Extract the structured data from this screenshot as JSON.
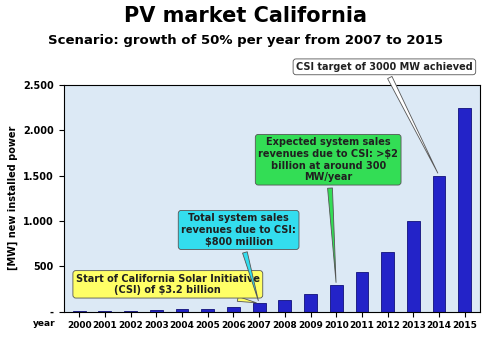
{
  "chart_data": {
    "type": "bar",
    "title": "PV market California",
    "subtitle": "Scenario: growth of 50% per year from 2007 to 2015",
    "y_label": "[MW] new installed power",
    "x_label": "year",
    "categories": [
      "2000",
      "2001",
      "2002",
      "2003",
      "2004",
      "2005",
      "2006",
      "2007",
      "2008",
      "2009",
      "2010",
      "2011",
      "2012",
      "2013",
      "2014",
      "2015"
    ],
    "values": [
      2,
      5,
      8,
      20,
      30,
      30,
      50,
      90,
      130,
      195,
      290,
      440,
      660,
      1000,
      1500,
      2250
    ],
    "color": "#2323c8",
    "ylim": [
      0,
      2500
    ],
    "yticks": [
      {
        "value": 0,
        "label": "-"
      },
      500,
      {
        "value": 1000,
        "label": "1.000"
      },
      {
        "value": 1500,
        "label": "1.500"
      },
      {
        "value": 2000,
        "label": "2.000"
      },
      {
        "value": 2500,
        "label": "2.500"
      }
    ],
    "grid": false,
    "annotations": [
      {
        "text": "Start of California Solar Initiative (CSI) of $3.2 billion",
        "category": "2007"
      },
      {
        "text": "Total system sales revenues due to CSI: $800 million",
        "category": "2007"
      },
      {
        "text": "Expected system sales revenues due to CSI: >$2 billion at around 300 MW/year",
        "category": "2010"
      },
      {
        "text": "CSI target of 3000 MW achieved",
        "category": "2014"
      }
    ]
  }
}
